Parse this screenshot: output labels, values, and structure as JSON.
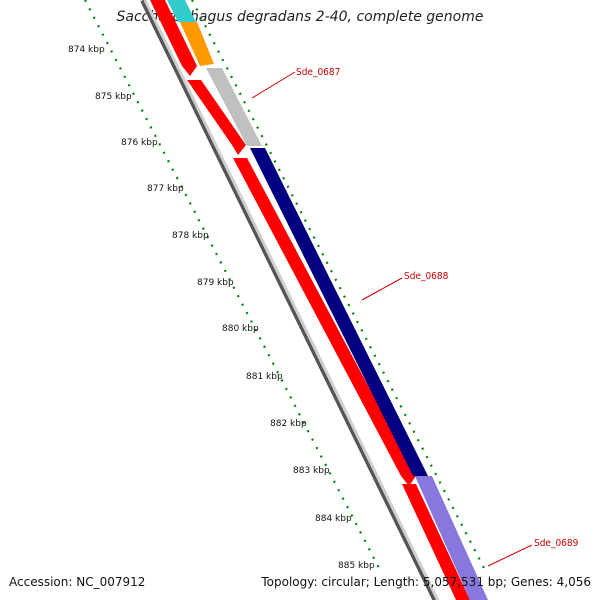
{
  "title": "Saccharophagus degradans 2-40, complete genome",
  "footer": {
    "accession": "Accession: NC_007912",
    "summary": "Topology: circular; Length: 5,057,531 bp; Genes: 4,056"
  },
  "scale_ticks": [
    "874 kbp",
    "875 kbp",
    "876 kbp",
    "877 kbp",
    "878 kbp",
    "879 kbp",
    "880 kbp",
    "881 kbp",
    "882 kbp",
    "883 kbp",
    "884 kbp",
    "885 kbp"
  ],
  "gene_labels": [
    "Sde_0687",
    "Sde_0688",
    "Sde_0689"
  ],
  "colors": {
    "backbone": "#888888",
    "forward_red": "#ff0000",
    "orange": "#ff9900",
    "cyan": "#33cccc",
    "gray_gene": "#c0c0c0",
    "navy_gene": "#000080",
    "lavender_gene": "#8877dd",
    "tick_green": "#008800",
    "label_red": "#cc0000"
  }
}
